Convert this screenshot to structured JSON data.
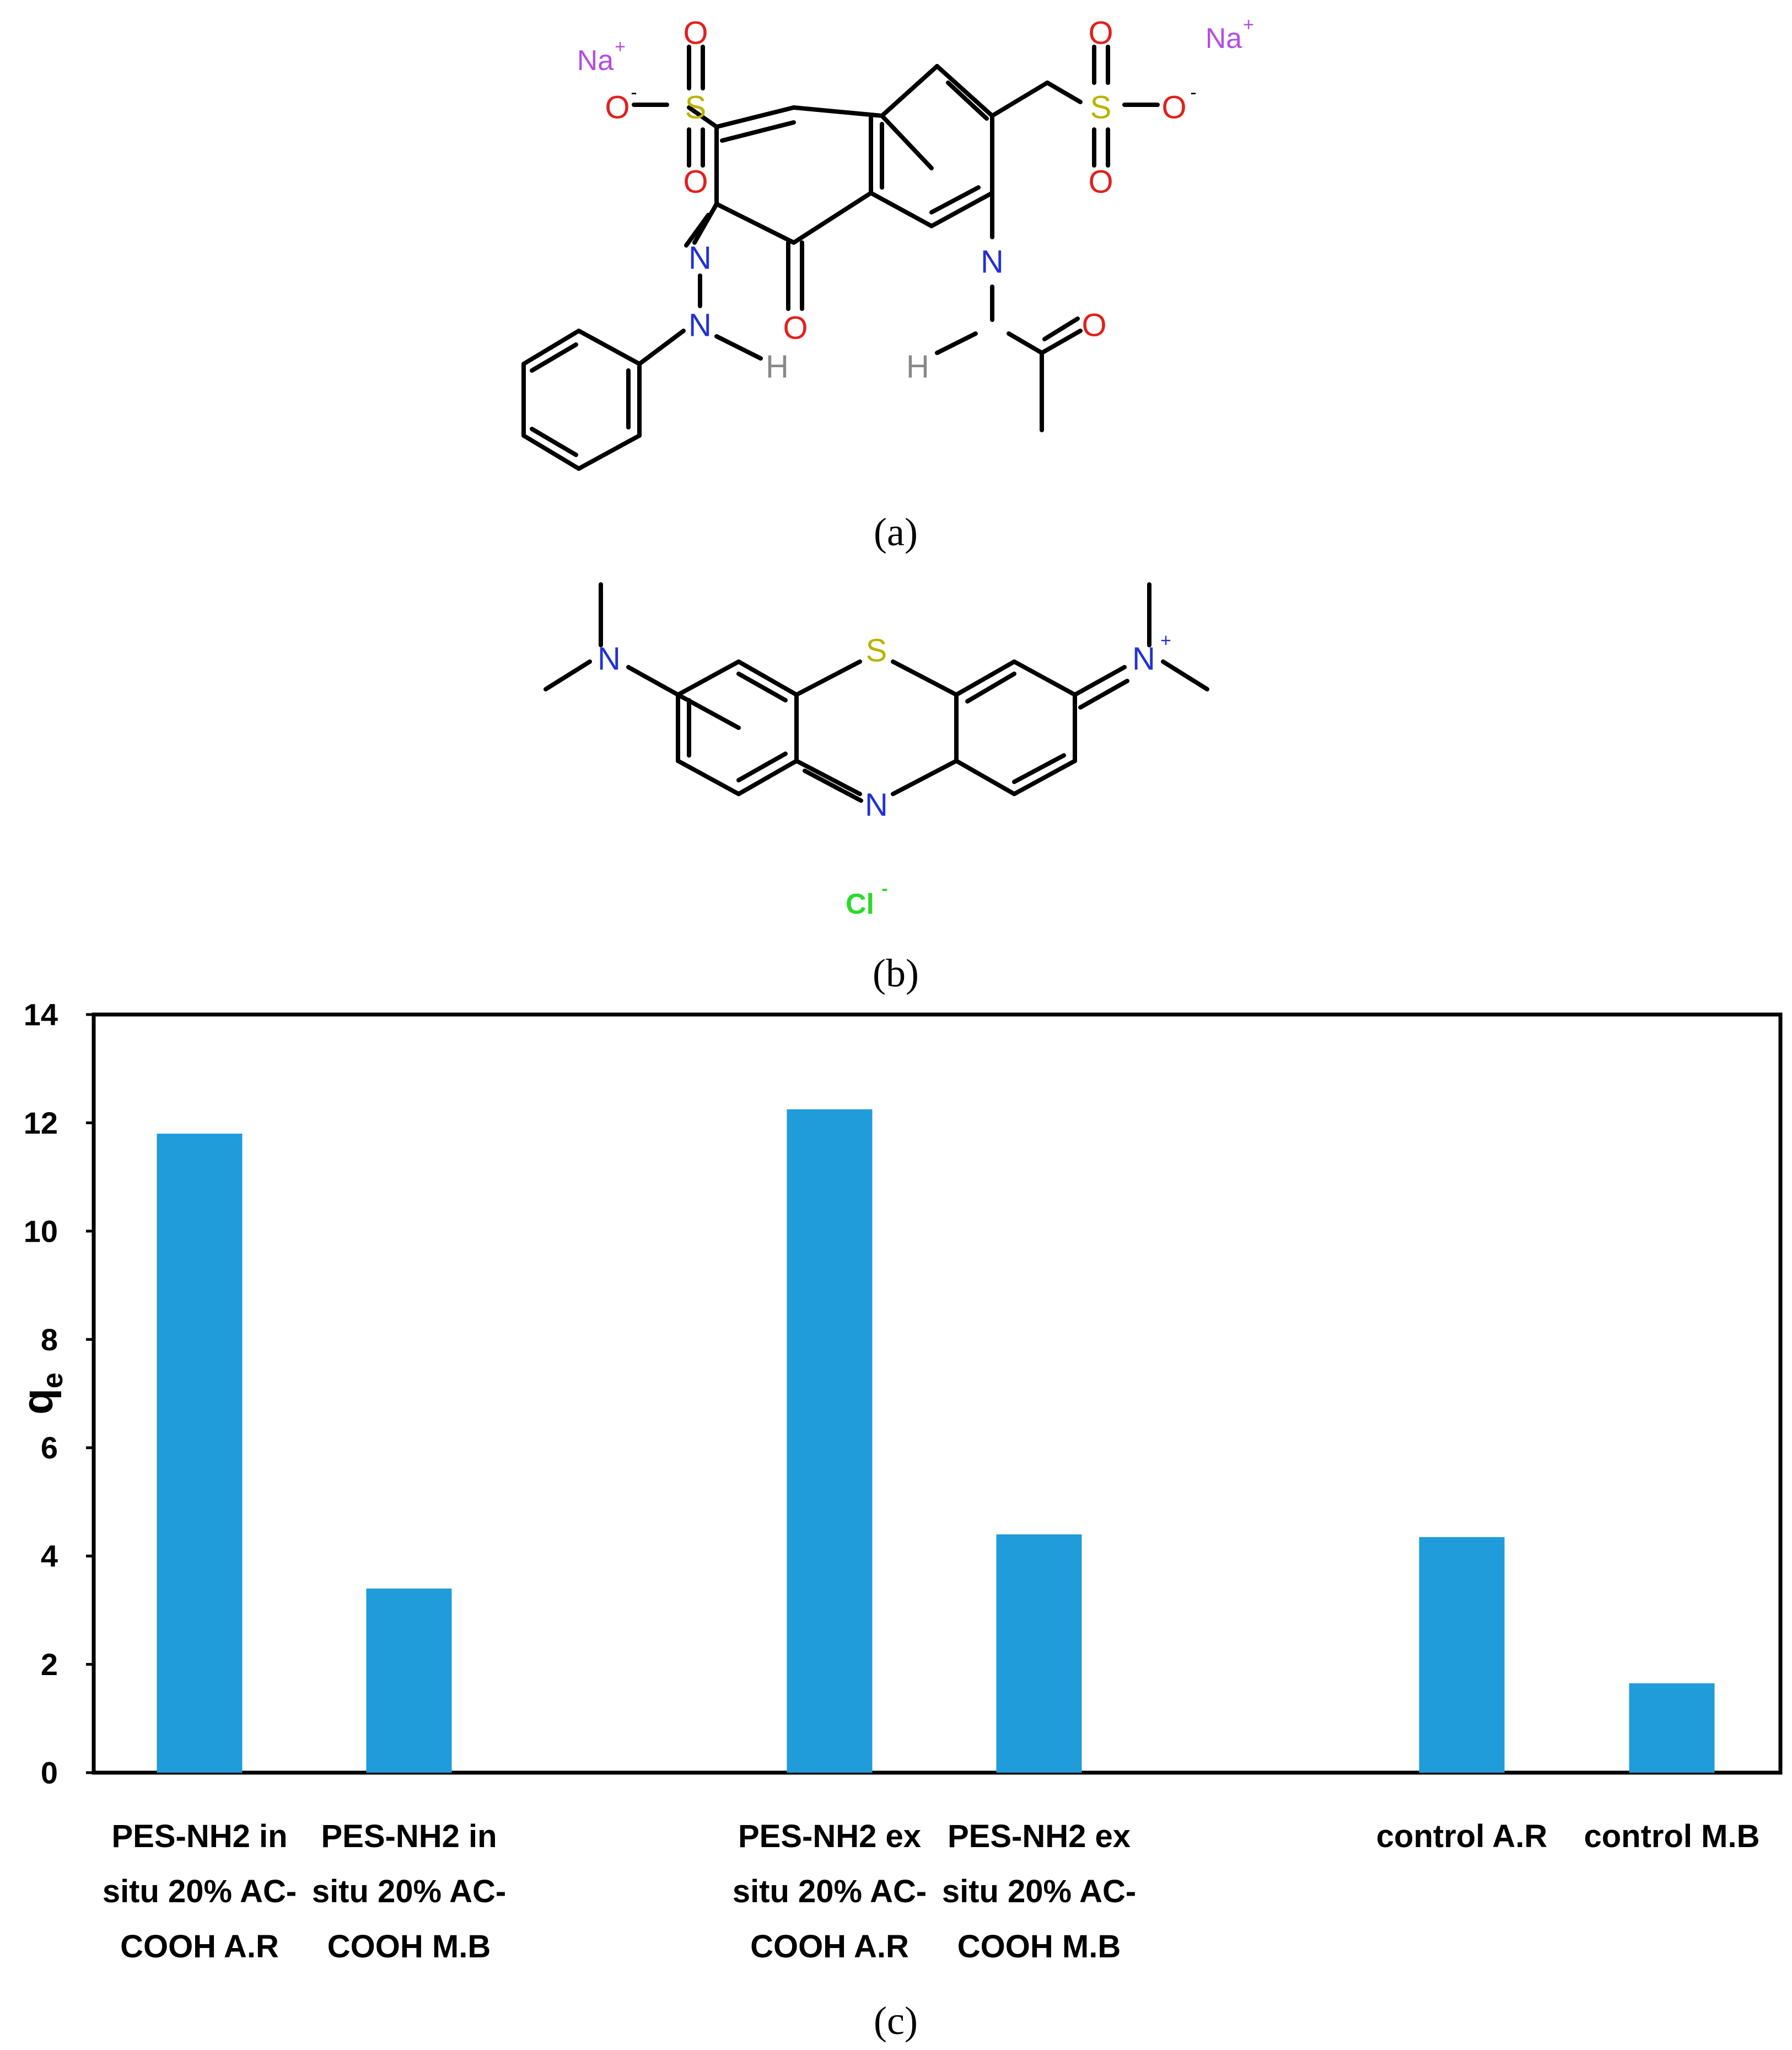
{
  "figure": {
    "panel_a_label": "(a)",
    "panel_b_label": "(b)",
    "panel_c_label": "(c)"
  },
  "molecule_a": {
    "name": "",
    "counter_ions": [
      "Na",
      "Na"
    ],
    "atoms": {
      "o": "O",
      "s": "S",
      "n": "N",
      "h": "H",
      "o_minus": "O"
    },
    "colors": {
      "O": "#e0201e",
      "S": "#b9b400",
      "N": "#2231d6",
      "H": "#888888",
      "Na": "#b44ee0"
    }
  },
  "molecule_b": {
    "name": "",
    "counter_ion": "Cl",
    "atoms": {
      "s": "S",
      "n": "N"
    },
    "colors": {
      "N": "#2231d6",
      "S": "#b9b400",
      "Cl": "#2cd92c"
    }
  },
  "chart_data": {
    "type": "bar",
    "title": "",
    "xlabel": "",
    "ylabel": "q",
    "ylabel_sub": "e",
    "ylim": [
      0,
      14
    ],
    "yticks": [
      0,
      2,
      4,
      6,
      8,
      10,
      12,
      14
    ],
    "grid": false,
    "bar_color": "#1f9cd9",
    "categories": [
      [
        "PES-NH2 in",
        "situ 20% AC-",
        "COOH A.R"
      ],
      [
        "PES-NH2 in",
        "situ 20% AC-",
        "COOH  M.B"
      ],
      [
        "PES-NH2 ex",
        "situ 20% AC-",
        "COOH A.R"
      ],
      [
        "PES-NH2 ex",
        "situ 20% AC-",
        "COOH M.B"
      ],
      [
        "control   A.R"
      ],
      [
        "control   M.B"
      ]
    ],
    "values": [
      11.8,
      3.4,
      12.25,
      4.4,
      4.35,
      1.65
    ]
  }
}
